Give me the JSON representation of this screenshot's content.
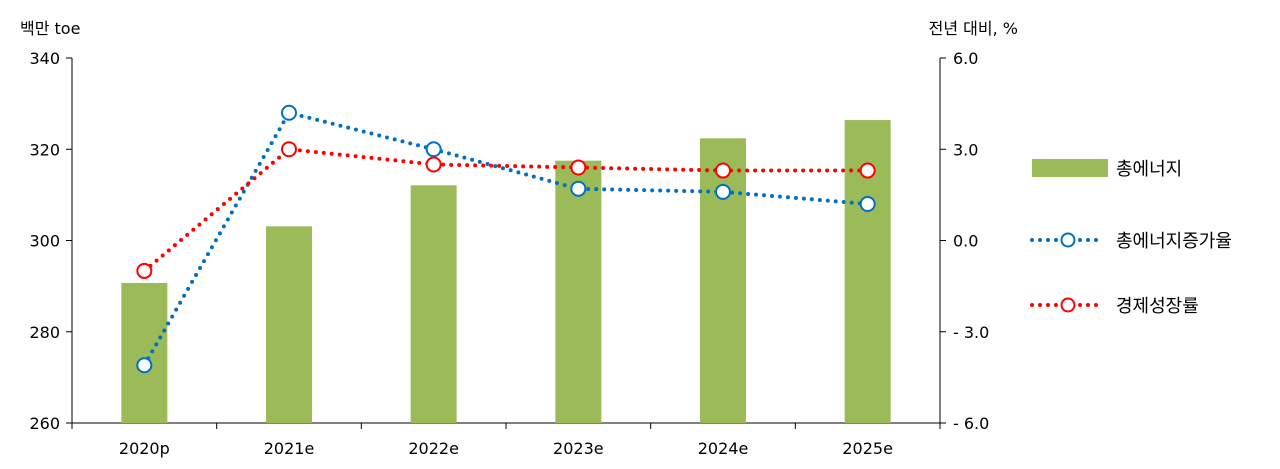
{
  "chart_data": {
    "type": "bar+line",
    "categories": [
      "2020p",
      "2021e",
      "2022e",
      "2023e",
      "2024e",
      "2025e"
    ],
    "left_axis": {
      "unit_label": "백만 toe",
      "ylim": [
        260,
        340
      ],
      "ticks": [
        "340",
        "320",
        "300",
        "280",
        "260"
      ],
      "tick_values": [
        340,
        320,
        300,
        280,
        260
      ]
    },
    "right_axis": {
      "unit_label": "전년 대비, %",
      "ylim": [
        -6.0,
        6.0
      ],
      "ticks": [
        "6.0",
        "3.0",
        "0.0",
        "- 3.0",
        "- 6.0"
      ],
      "tick_values": [
        6.0,
        3.0,
        0.0,
        -3.0,
        -6.0
      ]
    },
    "series": [
      {
        "name": "총에너지",
        "kind": "bar",
        "axis": "left",
        "color": "#9bbb59",
        "values": [
          290.7,
          303.1,
          312.1,
          317.5,
          322.4,
          326.4
        ]
      },
      {
        "name": "총에너지증가율",
        "kind": "line",
        "axis": "right",
        "color": "#0070c0",
        "values": [
          -4.1,
          4.2,
          3.0,
          1.7,
          1.6,
          1.2
        ]
      },
      {
        "name": "경제성장률",
        "kind": "line",
        "axis": "right",
        "color": "#ff0000",
        "values": [
          -1.0,
          3.0,
          2.5,
          2.4,
          2.3,
          2.3
        ]
      }
    ],
    "grid": false,
    "legend_position": "right"
  }
}
